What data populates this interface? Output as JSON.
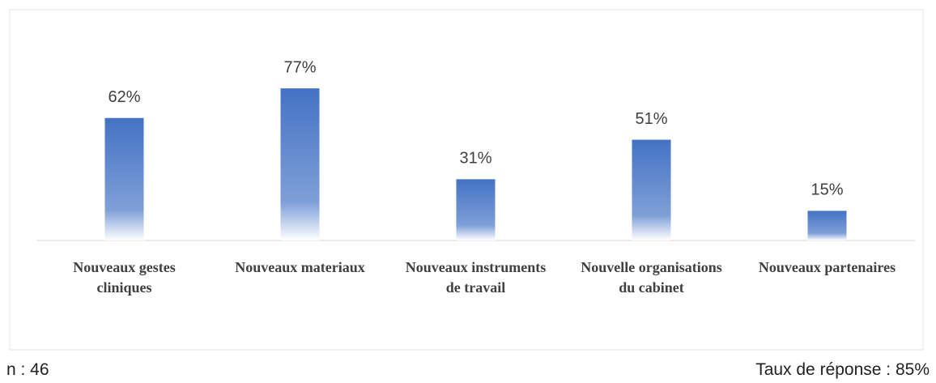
{
  "chart_data": {
    "type": "bar",
    "categories": [
      "Nouveaux gestes cliniques",
      "Nouveaux materiaux",
      "Nouveaux instruments de travail",
      "Nouvelle organisations du cabinet",
      "Nouveaux partenaires"
    ],
    "values": [
      62,
      77,
      31,
      51,
      15
    ],
    "value_labels": [
      "62%",
      "77%",
      "31%",
      "51%",
      "15%"
    ],
    "color": "#4472c4",
    "ylim": [
      0,
      100
    ],
    "annotations": [
      "n : 46",
      "Taux de réponse : 85%"
    ]
  }
}
